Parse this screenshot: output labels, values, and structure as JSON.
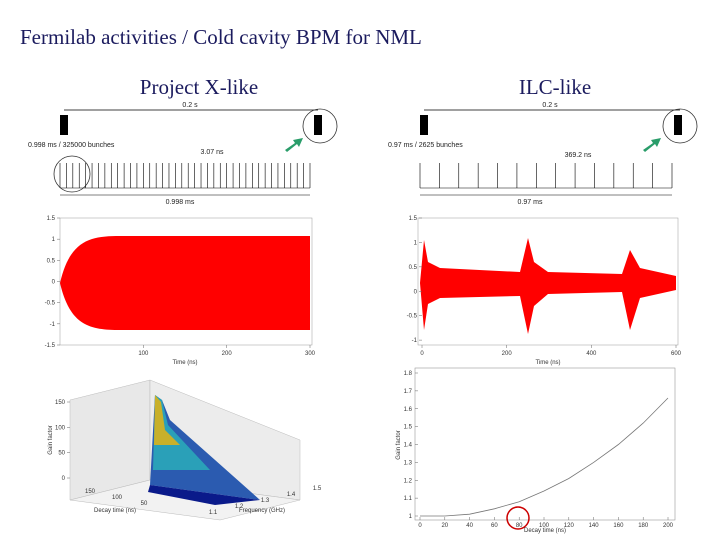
{
  "header": {
    "title": "Fermilab activities / Cold cavity BPM for NML"
  },
  "columns": [
    {
      "heading": "Project X-like",
      "timing": {
        "period": "0.2 s",
        "train": "0.998 ms / 325000 bunches",
        "spacing": "3.07 ns",
        "length": "0.998 ms"
      },
      "scope": {
        "xlabel": "Time (ns)",
        "xticks": [
          100,
          200,
          300
        ],
        "xlim": [
          0,
          300
        ],
        "yticks": [
          1.5,
          1,
          0.5,
          0,
          -0.5,
          -1,
          -1.5
        ],
        "ylim": [
          -1.5,
          1.5
        ]
      },
      "surface": {
        "zlabel": "Gain factor",
        "xlabel": "Decay time (ns)",
        "ylabel": "Frequency (GHz)",
        "zticks": [
          0,
          50,
          100,
          150
        ],
        "zlim": [
          0,
          150
        ],
        "decay_ticks": [
          150,
          100,
          50
        ],
        "freq_ticks": [
          1.1,
          1.2,
          1.3,
          1.4,
          1.5
        ]
      }
    },
    {
      "heading": "ILC-like",
      "timing": {
        "period": "0.2 s",
        "train": "0.97 ms / 2625 bunches",
        "spacing": "369.2 ns",
        "length": "0.97 ms"
      },
      "scope": {
        "xlabel": "Time (ns)",
        "xticks": [
          0,
          200,
          400,
          600
        ],
        "xlim": [
          0,
          600
        ],
        "yticks": [
          1.5,
          1,
          0.5,
          0,
          -0.5,
          -1
        ],
        "ylim": [
          -1.1,
          1.5
        ]
      },
      "gain": {
        "xlabel": "Decay time (ns)",
        "ylabel": "Gain factor",
        "xlim": [
          0,
          200
        ],
        "ylim": [
          1,
          1.8
        ],
        "xticks": [
          0,
          20,
          40,
          60,
          80,
          100,
          120,
          140,
          160,
          180,
          200
        ],
        "yticks": [
          1,
          1.1,
          1.2,
          1.3,
          1.4,
          1.5,
          1.6,
          1.7,
          1.8
        ],
        "x": [
          0,
          20,
          40,
          60,
          80,
          100,
          120,
          140,
          160,
          180,
          200
        ],
        "y": [
          1,
          1,
          1.01,
          1.04,
          1.08,
          1.14,
          1.21,
          1.3,
          1.4,
          1.52,
          1.66
        ]
      }
    }
  ]
}
